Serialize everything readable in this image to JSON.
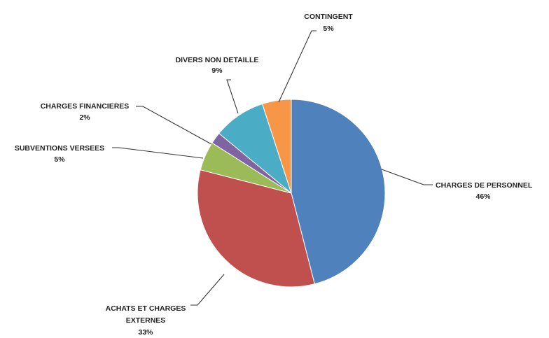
{
  "chart_data": {
    "type": "pie",
    "slices": [
      {
        "label": "CHARGES DE PERSONNEL",
        "percent_label": "46%",
        "value": 46,
        "color": "#4f81bd"
      },
      {
        "label": "ACHATS ET CHARGES EXTERNES",
        "percent_label": "33%",
        "value": 33,
        "color": "#c0504d"
      },
      {
        "label": "SUBVENTIONS VERSEES",
        "percent_label": "5%",
        "value": 5,
        "color": "#9bbb59"
      },
      {
        "label": "CHARGES FINANCIERES",
        "percent_label": "2%",
        "value": 2,
        "color": "#8064a2"
      },
      {
        "label": "DIVERS NON DETAILLE",
        "percent_label": "9%",
        "value": 9,
        "color": "#4bacc6"
      },
      {
        "label": "CONTINGENT",
        "percent_label": "5%",
        "value": 5,
        "color": "#f79646"
      }
    ]
  },
  "labels": {
    "personnel": {
      "line1": "CHARGES DE PERSONNEL",
      "pct": "46%"
    },
    "achats": {
      "line1": "ACHATS ET CHARGES",
      "line2": "EXTERNES",
      "pct": "33%"
    },
    "subventions": {
      "line1": "SUBVENTIONS VERSEES",
      "pct": "5%"
    },
    "financieres": {
      "line1": "CHARGES FINANCIERES",
      "pct": "2%"
    },
    "divers": {
      "line1": "DIVERS NON DETAILLE",
      "pct": "9%"
    },
    "contingent": {
      "line1": "CONTINGENT",
      "pct": "5%"
    }
  }
}
